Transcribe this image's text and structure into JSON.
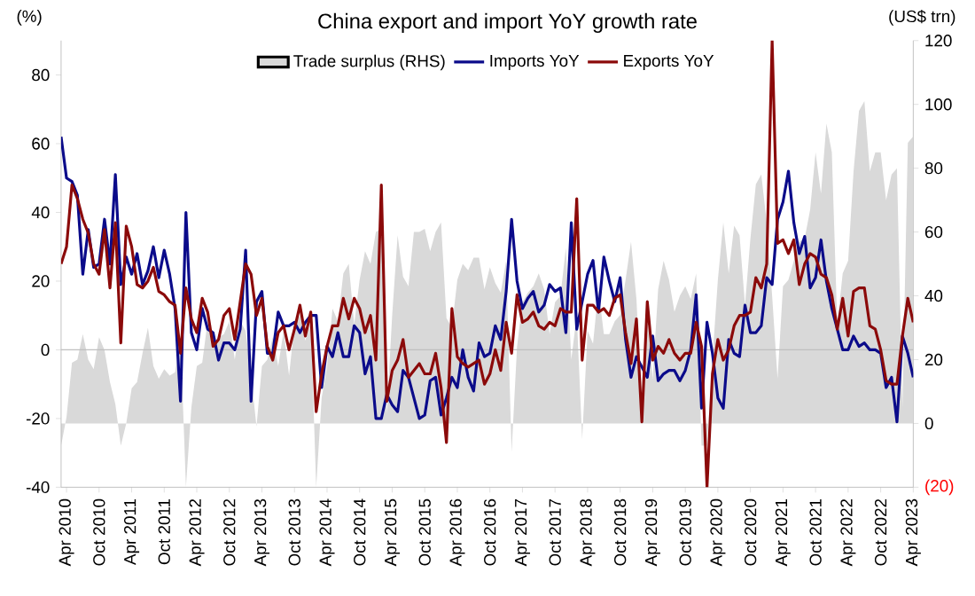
{
  "chart_data": {
    "type": "line",
    "title": "China export and import YoY growth rate",
    "ylabel": "(%)",
    "y2label": "(US$ trn)",
    "x": [
      "2010-03",
      "2010-04",
      "2010-05",
      "2010-06",
      "2010-07",
      "2010-08",
      "2010-09",
      "2010-10",
      "2010-11",
      "2010-12",
      "2011-01",
      "2011-02",
      "2011-03",
      "2011-04",
      "2011-05",
      "2011-06",
      "2011-07",
      "2011-08",
      "2011-09",
      "2011-10",
      "2011-11",
      "2011-12",
      "2012-01",
      "2012-02",
      "2012-03",
      "2012-04",
      "2012-05",
      "2012-06",
      "2012-07",
      "2012-08",
      "2012-09",
      "2012-10",
      "2012-11",
      "2012-12",
      "2013-01",
      "2013-02",
      "2013-03",
      "2013-04",
      "2013-05",
      "2013-06",
      "2013-07",
      "2013-08",
      "2013-09",
      "2013-10",
      "2013-11",
      "2013-12",
      "2014-01",
      "2014-02",
      "2014-03",
      "2014-04",
      "2014-05",
      "2014-06",
      "2014-07",
      "2014-08",
      "2014-09",
      "2014-10",
      "2014-11",
      "2014-12",
      "2015-01",
      "2015-02",
      "2015-03",
      "2015-04",
      "2015-05",
      "2015-06",
      "2015-07",
      "2015-08",
      "2015-09",
      "2015-10",
      "2015-11",
      "2015-12",
      "2016-01",
      "2016-02",
      "2016-03",
      "2016-04",
      "2016-05",
      "2016-06",
      "2016-07",
      "2016-08",
      "2016-09",
      "2016-10",
      "2016-11",
      "2016-12",
      "2017-01",
      "2017-02",
      "2017-03",
      "2017-04",
      "2017-05",
      "2017-06",
      "2017-07",
      "2017-08",
      "2017-09",
      "2017-10",
      "2017-11",
      "2017-12",
      "2018-01",
      "2018-02",
      "2018-03",
      "2018-04",
      "2018-05",
      "2018-06",
      "2018-07",
      "2018-08",
      "2018-09",
      "2018-10",
      "2018-11",
      "2018-12",
      "2019-01",
      "2019-02",
      "2019-03",
      "2019-04",
      "2019-05",
      "2019-06",
      "2019-07",
      "2019-08",
      "2019-09",
      "2019-10",
      "2019-11",
      "2019-12",
      "2020-01",
      "2020-02",
      "2020-03",
      "2020-04",
      "2020-05",
      "2020-06",
      "2020-07",
      "2020-08",
      "2020-09",
      "2020-10",
      "2020-11",
      "2020-12",
      "2021-01",
      "2021-02",
      "2021-03",
      "2021-04",
      "2021-05",
      "2021-06",
      "2021-07",
      "2021-08",
      "2021-09",
      "2021-10",
      "2021-11",
      "2021-12",
      "2022-01",
      "2022-02",
      "2022-03",
      "2022-04",
      "2022-05",
      "2022-06",
      "2022-07",
      "2022-08",
      "2022-09",
      "2022-10",
      "2022-11",
      "2022-12",
      "2023-01",
      "2023-02",
      "2023-03",
      "2023-04"
    ],
    "series": [
      {
        "name": "Trade surplus (RHS)",
        "type": "area",
        "axis": "y2",
        "color": "#d9d9d9",
        "values": [
          -7,
          2,
          19,
          20,
          28,
          20,
          17,
          27,
          23,
          13,
          6,
          -7,
          0,
          11,
          13,
          22,
          30,
          18,
          14,
          17,
          15,
          16,
          27,
          -20,
          5,
          18,
          19,
          32,
          25,
          27,
          28,
          32,
          20,
          32,
          29,
          15,
          -1,
          18,
          20,
          27,
          18,
          29,
          15,
          31,
          34,
          26,
          32,
          -20,
          8,
          18,
          36,
          32,
          47,
          50,
          31,
          45,
          54,
          50,
          60,
          61,
          3,
          34,
          59,
          46,
          43,
          60,
          60,
          61,
          54,
          60,
          63,
          33,
          30,
          45,
          50,
          48,
          52,
          52,
          42,
          49,
          44,
          41,
          51,
          -9,
          24,
          38,
          41,
          43,
          47,
          42,
          28,
          38,
          40,
          55,
          20,
          34,
          -5,
          29,
          25,
          42,
          28,
          28,
          32,
          34,
          45,
          57,
          39,
          4,
          33,
          14,
          42,
          51,
          45,
          35,
          40,
          43,
          39,
          47,
          -7,
          -7,
          20,
          45,
          63,
          47,
          62,
          59,
          37,
          58,
          75,
          78,
          63,
          40,
          14,
          43,
          45,
          51,
          57,
          58,
          67,
          85,
          72,
          94,
          85,
          31,
          47,
          51,
          79,
          98,
          101,
          79,
          85,
          85,
          70,
          78,
          80,
          5,
          88,
          90
        ]
      },
      {
        "name": "Imports YoY",
        "color": "#0b0b8a",
        "values": [
          62,
          50,
          49,
          45,
          22,
          35,
          24,
          25,
          38,
          25,
          51,
          19,
          27,
          22,
          28,
          19,
          23,
          30,
          21,
          29,
          22,
          12,
          -15,
          40,
          5,
          0,
          12,
          6,
          5,
          -3,
          2,
          2,
          0,
          6,
          29,
          -15,
          14,
          17,
          -1,
          -1,
          11,
          7,
          7,
          8,
          5,
          8,
          10,
          10,
          -11,
          1,
          -2,
          5,
          -2,
          -2,
          7,
          5,
          -7,
          -2,
          -20,
          -20,
          -13,
          -16,
          -18,
          -6,
          -8,
          -14,
          -20,
          -19,
          -9,
          -8,
          -19,
          -14,
          -8,
          -11,
          0,
          -8,
          -12,
          2,
          -2,
          -1,
          7,
          3,
          17,
          38,
          20,
          12,
          15,
          17,
          11,
          13,
          19,
          17,
          18,
          5,
          37,
          6,
          14,
          22,
          26,
          11,
          27,
          20,
          14,
          21,
          3,
          -8,
          -2,
          -5,
          -8,
          4,
          -9,
          -7,
          -6,
          -6,
          -9,
          -6,
          0,
          16,
          -17,
          8,
          -1,
          -14,
          -17,
          3,
          -1,
          -2,
          13,
          5,
          5,
          7,
          21,
          19,
          38,
          43,
          52,
          37,
          28,
          33,
          18,
          21,
          32,
          20,
          12,
          6,
          0,
          0,
          4,
          1,
          2,
          0,
          0,
          -1,
          -11,
          -8,
          -21,
          4,
          -1,
          -8
        ]
      },
      {
        "name": "Exports YoY",
        "color": "#8b0a0a",
        "values": [
          25,
          30,
          48,
          44,
          38,
          34,
          25,
          22,
          35,
          18,
          37,
          2,
          36,
          30,
          19,
          18,
          20,
          24,
          17,
          16,
          14,
          13,
          -1,
          18,
          9,
          5,
          15,
          11,
          1,
          3,
          10,
          12,
          3,
          14,
          25,
          22,
          10,
          15,
          1,
          -3,
          5,
          7,
          0,
          6,
          13,
          4,
          11,
          -18,
          -7,
          1,
          7,
          7,
          15,
          9,
          15,
          12,
          5,
          10,
          -3,
          48,
          -15,
          -6,
          -3,
          3,
          -8,
          -6,
          -4,
          -7,
          -7,
          -1,
          -11,
          -27,
          12,
          -2,
          -4,
          -5,
          -4,
          -3,
          -10,
          -7,
          0,
          -6,
          8,
          -1,
          16,
          8,
          9,
          11,
          7,
          6,
          8,
          7,
          12,
          11,
          11,
          44,
          -3,
          13,
          13,
          11,
          12,
          10,
          15,
          16,
          5,
          -4,
          9,
          -21,
          14,
          -3,
          1,
          -1,
          3,
          -1,
          -3,
          -1,
          -1,
          8,
          1,
          -40,
          -7,
          3,
          -3,
          0,
          7,
          10,
          10,
          11,
          21,
          18,
          25,
          90,
          31,
          32,
          28,
          32,
          19,
          25,
          28,
          27,
          22,
          21,
          16,
          6,
          15,
          4,
          17,
          18,
          18,
          7,
          6,
          0,
          -9,
          -10,
          -10,
          4,
          15,
          8
        ]
      }
    ],
    "xlim": [
      "2010-03",
      "2023-04"
    ],
    "xticks": [
      {
        "value": "2010-04",
        "label": "Apr 2010"
      },
      {
        "value": "2010-10",
        "label": "Oct 2010"
      },
      {
        "value": "2011-04",
        "label": "Apr 2011"
      },
      {
        "value": "2011-10",
        "label": "Oct 2011"
      },
      {
        "value": "2012-04",
        "label": "Apr 2012"
      },
      {
        "value": "2012-10",
        "label": "Oct 2012"
      },
      {
        "value": "2013-04",
        "label": "Apr 2013"
      },
      {
        "value": "2013-10",
        "label": "Oct 2013"
      },
      {
        "value": "2014-04",
        "label": "Apr 2014"
      },
      {
        "value": "2014-10",
        "label": "Oct 2014"
      },
      {
        "value": "2015-04",
        "label": "Apr 2015"
      },
      {
        "value": "2015-10",
        "label": "Oct 2015"
      },
      {
        "value": "2016-04",
        "label": "Apr 2016"
      },
      {
        "value": "2016-10",
        "label": "Oct 2016"
      },
      {
        "value": "2017-04",
        "label": "Apr 2017"
      },
      {
        "value": "2017-10",
        "label": "Oct 2017"
      },
      {
        "value": "2018-04",
        "label": "Apr 2018"
      },
      {
        "value": "2018-10",
        "label": "Oct 2018"
      },
      {
        "value": "2019-04",
        "label": "Apr 2019"
      },
      {
        "value": "2019-10",
        "label": "Oct 2019"
      },
      {
        "value": "2020-04",
        "label": "Apr 2020"
      },
      {
        "value": "2020-10",
        "label": "Oct 2020"
      },
      {
        "value": "2021-04",
        "label": "Apr 2021"
      },
      {
        "value": "2021-10",
        "label": "Oct 2021"
      },
      {
        "value": "2022-04",
        "label": "Apr 2022"
      },
      {
        "value": "2022-10",
        "label": "Oct 2022"
      },
      {
        "value": "2023-04",
        "label": "Apr 2023"
      }
    ],
    "ylim": [
      -40,
      90
    ],
    "yticks": [
      -40,
      -20,
      0,
      20,
      40,
      60,
      80
    ],
    "y2lim": [
      -20,
      120
    ],
    "y2ticks": [
      {
        "value": -20,
        "label": "(20)"
      },
      0,
      20,
      40,
      60,
      80,
      100,
      120
    ],
    "ref_lines": [
      {
        "axis": "y",
        "value": 0,
        "color": "#bfbfbf"
      }
    ],
    "legend": "top"
  }
}
